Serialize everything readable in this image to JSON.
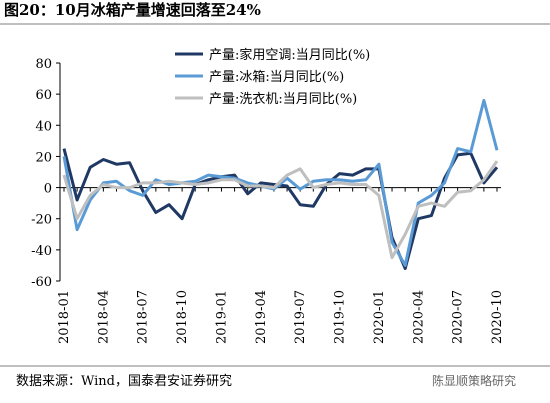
{
  "chart_data": {
    "type": "line",
    "title": "图20：10月冰箱产量增速回落至24%",
    "source": "数据来源：Wind，国泰君安证券研究",
    "watermark": "陈显顺策略研究",
    "categories": [
      "2018-01",
      null,
      null,
      "2018-04",
      null,
      null,
      "2018-07",
      null,
      null,
      "2018-10",
      null,
      null,
      "2019-01",
      null,
      null,
      "2019-04",
      null,
      null,
      "2019-07",
      null,
      null,
      "2019-10",
      null,
      null,
      "2020-01",
      null,
      null,
      "2020-04",
      null,
      null,
      "2020-07",
      null,
      null,
      "2020-10"
    ],
    "series": [
      {
        "name": "产量:家用空调:当月同比(%)",
        "color": "#1f3864",
        "values": [
          25,
          -8,
          13,
          18,
          15,
          16,
          -2,
          -16,
          -11,
          -20,
          2,
          5,
          7,
          8,
          -4,
          3,
          2,
          1,
          -11,
          -12,
          2,
          9,
          8,
          12,
          12,
          -32,
          -52,
          -20,
          -18,
          6,
          21,
          22,
          3,
          13
        ]
      },
      {
        "name": "产量:冰箱:当月同比(%)",
        "color": "#5b9bd5",
        "values": [
          20,
          -27,
          -8,
          3,
          4,
          -2,
          -5,
          5,
          2,
          3,
          4,
          8,
          7,
          6,
          3,
          1,
          -1,
          6,
          -1,
          4,
          5,
          5,
          4,
          5,
          15,
          -35,
          -50,
          -10,
          -5,
          3,
          25,
          23,
          56,
          24
        ]
      },
      {
        "name": "产量:洗衣机:当月同比(%)",
        "color": "#bfbfbf",
        "values": [
          8,
          -20,
          -5,
          2,
          0,
          0,
          3,
          3,
          4,
          3,
          2,
          3,
          5,
          5,
          1,
          1,
          0,
          8,
          12,
          0,
          2,
          3,
          2,
          2,
          -5,
          -45,
          -30,
          -12,
          -10,
          -12,
          -3,
          -2,
          5,
          17
        ]
      }
    ],
    "ylim": [
      -60,
      80
    ],
    "yticks": [
      -60,
      -40,
      -20,
      0,
      20,
      40,
      60,
      80
    ],
    "grid": false,
    "legend": "upper center"
  }
}
